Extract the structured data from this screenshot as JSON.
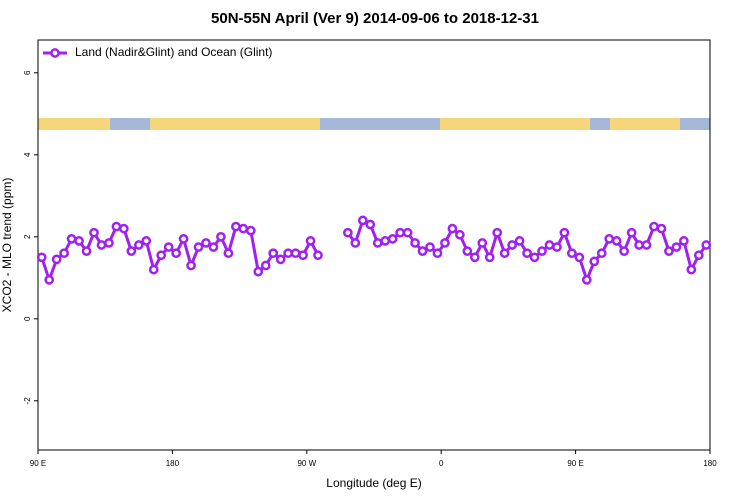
{
  "chart_data": {
    "type": "line",
    "title": "50N-55N April (Ver 9)   2014-09-06 to 2018-12-31",
    "x_label": "Longitude (deg E)",
    "y_label": "XCO2 - MLO trend (ppm)",
    "x": [
      92.5,
      97.5,
      102.5,
      107.5,
      112.5,
      117.5,
      122.5,
      127.5,
      132.5,
      137.5,
      142.5,
      147.5,
      152.5,
      157.5,
      162.5,
      167.5,
      172.5,
      177.5,
      182.5,
      187.5,
      192.5,
      197.5,
      202.5,
      207.5,
      212.5,
      217.5,
      222.5,
      227.5,
      232.5,
      237.5,
      242.5,
      247.5,
      252.5,
      257.5,
      262.5,
      267.5,
      272.5,
      277.5,
      282.5,
      287.5,
      292.5,
      297.5,
      302.5,
      307.5,
      312.5,
      317.5,
      322.5,
      327.5,
      332.5,
      337.5,
      342.5,
      347.5,
      352.5,
      357.5,
      362.5,
      367.5,
      372.5,
      377.5,
      382.5,
      387.5,
      392.5,
      397.5,
      402.5,
      407.5,
      412.5,
      417.5,
      422.5,
      427.5,
      432.5,
      437.5,
      442.5,
      447.5,
      452.5,
      457.5,
      462.5,
      467.5,
      472.5,
      477.5,
      482.5,
      487.5,
      492.5,
      497.5,
      502.5,
      507.5,
      512.5,
      517.5,
      522.5,
      527.5,
      532.5,
      537.5
    ],
    "series": [
      {
        "name": "Land (Nadir&Glint) and Ocean (Glint)",
        "color": "#a020f0",
        "values": [
          1.5,
          0.95,
          1.45,
          1.6,
          1.95,
          1.9,
          1.65,
          2.1,
          1.8,
          1.85,
          2.25,
          2.2,
          1.65,
          1.8,
          1.9,
          1.2,
          1.55,
          1.75,
          1.6,
          1.95,
          1.3,
          1.75,
          1.85,
          1.75,
          2.0,
          1.6,
          2.25,
          2.2,
          2.15,
          1.15,
          1.3,
          1.6,
          1.45,
          1.6,
          1.6,
          1.55,
          1.9,
          1.55,
          null,
          null,
          null,
          2.1,
          1.85,
          2.4,
          2.3,
          1.85,
          1.9,
          1.95,
          2.1,
          2.1,
          1.85,
          1.65,
          1.75,
          1.6,
          1.85,
          2.2,
          2.05,
          1.65,
          1.5,
          1.85,
          1.5,
          2.1,
          1.6,
          1.8,
          1.9,
          1.6,
          1.5,
          1.65,
          1.8,
          1.75,
          2.1,
          1.6,
          1.5,
          0.95,
          1.4,
          1.6,
          1.95,
          1.9,
          1.65,
          2.1,
          1.8,
          1.8,
          2.25,
          2.2,
          1.65,
          1.75,
          1.9,
          1.2,
          1.55,
          1.8
        ]
      }
    ],
    "xlim": [
      90,
      540
    ],
    "xticks": [
      {
        "value": 90,
        "label": "90 E"
      },
      {
        "value": 180,
        "label": "180"
      },
      {
        "value": 270,
        "label": "90 W"
      },
      {
        "value": 360,
        "label": "0"
      },
      {
        "value": 450,
        "label": "90 E"
      },
      {
        "value": 540,
        "label": "180"
      }
    ],
    "ylim": [
      -3.2,
      6.8
    ],
    "yticks": [
      -2,
      0,
      2,
      4,
      6
    ],
    "legend": "top-left"
  }
}
